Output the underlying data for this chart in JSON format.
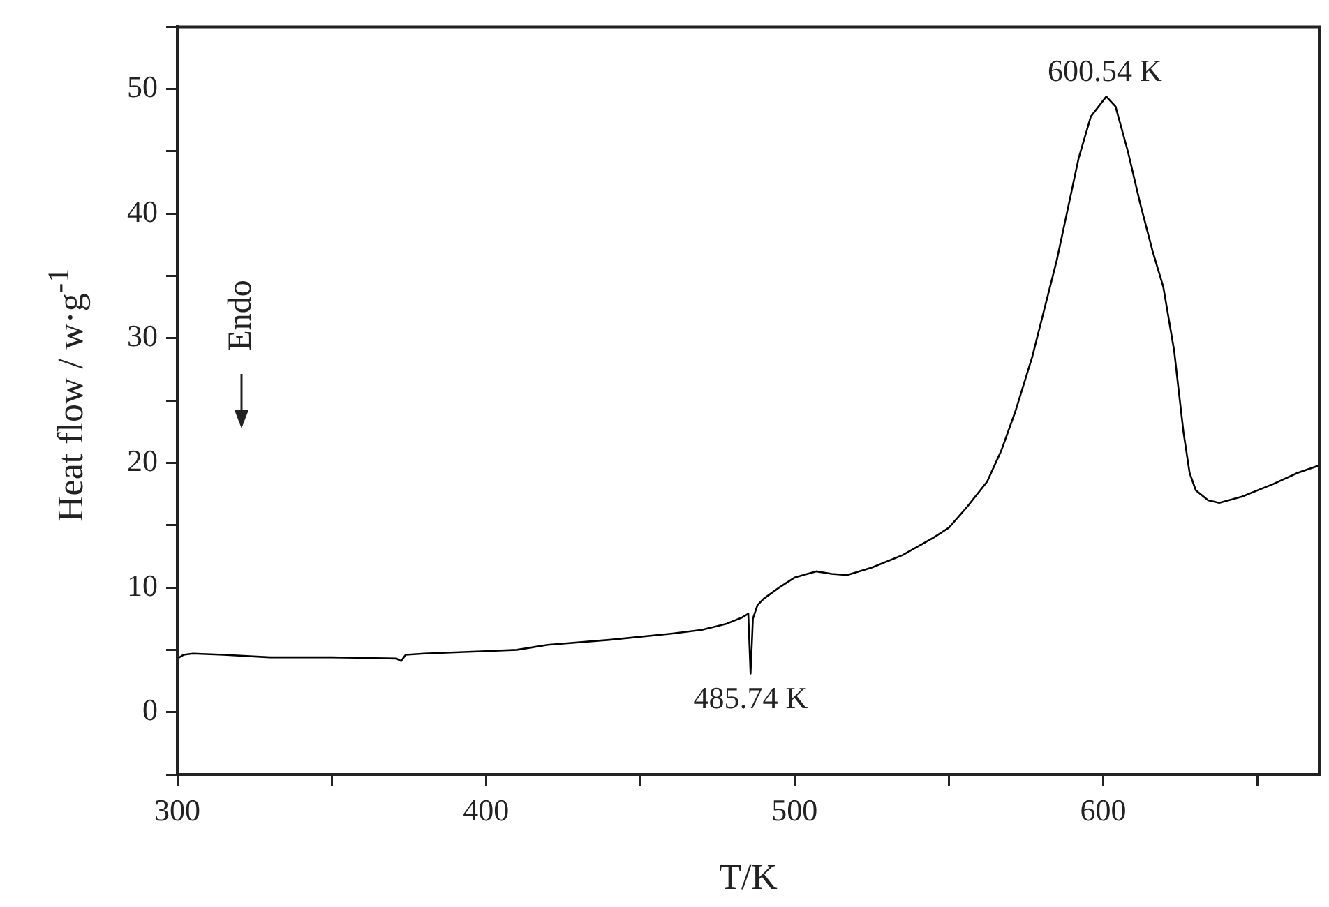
{
  "chart_data": {
    "type": "line",
    "xlabel": "T/K",
    "ylabel": "Heat flow / w·g$^{-1}$",
    "xlim": [
      300,
      670
    ],
    "ylim": [
      -5,
      55
    ],
    "xticks": [
      300,
      {
        "value": 350,
        "label": null
      },
      400,
      {
        "value": 450,
        "label": null
      },
      500,
      {
        "value": 550,
        "label": null
      },
      600,
      {
        "value": 650,
        "label": null
      }
    ],
    "yticks": [
      {
        "value": -5,
        "label": null
      },
      0,
      {
        "value": 5,
        "label": null
      },
      10,
      {
        "value": 15,
        "label": null
      },
      20,
      {
        "value": 25,
        "label": null
      },
      30,
      {
        "value": 35,
        "label": null
      },
      40,
      {
        "value": 45,
        "label": null
      },
      50,
      {
        "value": 55,
        "label": null
      }
    ],
    "grid": false,
    "legend": false,
    "marker": "none",
    "line_style": "solid",
    "series": [
      {
        "color": "#000000",
        "x": [
          300,
          302,
          305,
          315,
          330,
          350,
          371,
          372.5,
          374,
          380,
          400,
          410,
          420,
          440,
          460,
          470,
          478,
          483,
          485,
          485.74,
          486.5,
          488,
          490,
          495,
          500,
          507,
          512,
          517,
          525,
          535,
          545,
          550,
          556,
          562.4,
          567,
          571.5,
          577,
          585,
          592,
          596,
          601,
          604,
          608,
          612,
          616,
          619.5,
          623,
          626,
          628,
          630,
          634,
          637.6,
          645,
          655,
          663,
          670
        ],
        "values": [
          4.3,
          4.6,
          4.7,
          4.6,
          4.4,
          4.4,
          4.3,
          4.1,
          4.6,
          4.7,
          4.9,
          5.0,
          5.4,
          5.8,
          6.3,
          6.6,
          7.1,
          7.6,
          7.9,
          3.1,
          7.5,
          8.6,
          9.1,
          10.0,
          10.8,
          11.3,
          11.1,
          11.0,
          11.6,
          12.6,
          14.0,
          14.8,
          16.5,
          18.5,
          21.0,
          24.1,
          28.5,
          36.3,
          44.4,
          47.8,
          49.4,
          48.6,
          45.0,
          40.8,
          37.0,
          34.1,
          29.0,
          22.5,
          19.2,
          17.8,
          17.0,
          16.8,
          17.3,
          18.3,
          19.2,
          19.8
        ]
      }
    ],
    "annotations": [
      {
        "text": "600.54 K",
        "x": 600.54,
        "y": 49.4
      },
      {
        "text": "485.74 K",
        "x": 485.74,
        "y": 3.1
      },
      "Endo"
    ]
  }
}
